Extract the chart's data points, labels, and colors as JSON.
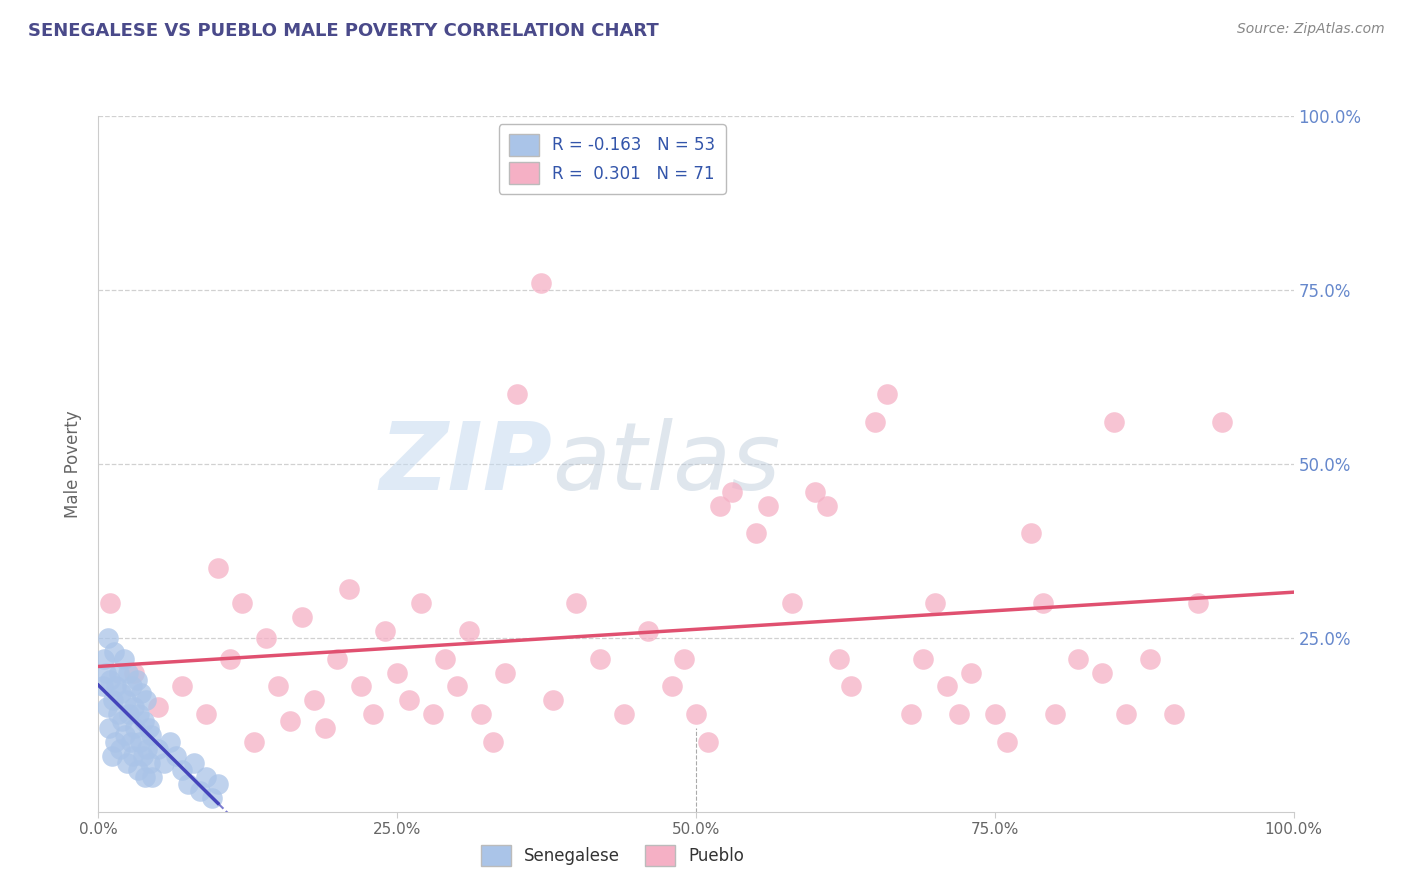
{
  "title": "SENEGALESE VS PUEBLO MALE POVERTY CORRELATION CHART",
  "source": "Source: ZipAtlas.com",
  "ylabel": "Male Poverty",
  "xlim": [
    0.0,
    1.0
  ],
  "ylim": [
    0.0,
    1.0
  ],
  "xtick_labels": [
    "0.0%",
    "25.0%",
    "50.0%",
    "75.0%",
    "100.0%"
  ],
  "xtick_vals": [
    0.0,
    0.25,
    0.5,
    0.75,
    1.0
  ],
  "ytick_labels": [
    "25.0%",
    "50.0%",
    "75.0%",
    "100.0%"
  ],
  "ytick_vals": [
    0.25,
    0.5,
    0.75,
    1.0
  ],
  "senegalese_color": "#aac4e8",
  "pueblo_color": "#f5b0c5",
  "senegalese_R": -0.163,
  "senegalese_N": 53,
  "pueblo_R": 0.301,
  "pueblo_N": 71,
  "background_color": "#ffffff",
  "grid_color": "#cccccc",
  "watermark_zip": "ZIP",
  "watermark_atlas": "atlas",
  "title_color": "#4a4a8a",
  "source_color": "#888888",
  "line_blue": "#4444bb",
  "line_pink": "#e05070",
  "senegalese_points": [
    [
      0.004,
      0.18
    ],
    [
      0.005,
      0.22
    ],
    [
      0.006,
      0.2
    ],
    [
      0.007,
      0.15
    ],
    [
      0.008,
      0.25
    ],
    [
      0.009,
      0.12
    ],
    [
      0.01,
      0.19
    ],
    [
      0.011,
      0.08
    ],
    [
      0.012,
      0.16
    ],
    [
      0.013,
      0.23
    ],
    [
      0.014,
      0.1
    ],
    [
      0.015,
      0.18
    ],
    [
      0.016,
      0.14
    ],
    [
      0.017,
      0.2
    ],
    [
      0.018,
      0.09
    ],
    [
      0.019,
      0.17
    ],
    [
      0.02,
      0.13
    ],
    [
      0.021,
      0.22
    ],
    [
      0.022,
      0.11
    ],
    [
      0.023,
      0.16
    ],
    [
      0.024,
      0.07
    ],
    [
      0.025,
      0.2
    ],
    [
      0.026,
      0.14
    ],
    [
      0.027,
      0.1
    ],
    [
      0.028,
      0.18
    ],
    [
      0.029,
      0.08
    ],
    [
      0.03,
      0.15
    ],
    [
      0.031,
      0.12
    ],
    [
      0.032,
      0.19
    ],
    [
      0.033,
      0.06
    ],
    [
      0.034,
      0.14
    ],
    [
      0.035,
      0.1
    ],
    [
      0.036,
      0.17
    ],
    [
      0.037,
      0.08
    ],
    [
      0.038,
      0.13
    ],
    [
      0.039,
      0.05
    ],
    [
      0.04,
      0.16
    ],
    [
      0.041,
      0.09
    ],
    [
      0.042,
      0.12
    ],
    [
      0.043,
      0.07
    ],
    [
      0.044,
      0.11
    ],
    [
      0.045,
      0.05
    ],
    [
      0.05,
      0.09
    ],
    [
      0.055,
      0.07
    ],
    [
      0.06,
      0.1
    ],
    [
      0.065,
      0.08
    ],
    [
      0.07,
      0.06
    ],
    [
      0.075,
      0.04
    ],
    [
      0.08,
      0.07
    ],
    [
      0.085,
      0.03
    ],
    [
      0.09,
      0.05
    ],
    [
      0.095,
      0.02
    ],
    [
      0.1,
      0.04
    ]
  ],
  "pueblo_points": [
    [
      0.01,
      0.3
    ],
    [
      0.03,
      0.2
    ],
    [
      0.05,
      0.15
    ],
    [
      0.07,
      0.18
    ],
    [
      0.09,
      0.14
    ],
    [
      0.1,
      0.35
    ],
    [
      0.11,
      0.22
    ],
    [
      0.12,
      0.3
    ],
    [
      0.13,
      0.1
    ],
    [
      0.14,
      0.25
    ],
    [
      0.15,
      0.18
    ],
    [
      0.16,
      0.13
    ],
    [
      0.17,
      0.28
    ],
    [
      0.18,
      0.16
    ],
    [
      0.19,
      0.12
    ],
    [
      0.2,
      0.22
    ],
    [
      0.21,
      0.32
    ],
    [
      0.22,
      0.18
    ],
    [
      0.23,
      0.14
    ],
    [
      0.24,
      0.26
    ],
    [
      0.25,
      0.2
    ],
    [
      0.26,
      0.16
    ],
    [
      0.27,
      0.3
    ],
    [
      0.28,
      0.14
    ],
    [
      0.29,
      0.22
    ],
    [
      0.3,
      0.18
    ],
    [
      0.31,
      0.26
    ],
    [
      0.32,
      0.14
    ],
    [
      0.33,
      0.1
    ],
    [
      0.34,
      0.2
    ],
    [
      0.35,
      0.6
    ],
    [
      0.37,
      0.76
    ],
    [
      0.38,
      0.16
    ],
    [
      0.4,
      0.3
    ],
    [
      0.42,
      0.22
    ],
    [
      0.44,
      0.14
    ],
    [
      0.46,
      0.26
    ],
    [
      0.48,
      0.18
    ],
    [
      0.49,
      0.22
    ],
    [
      0.5,
      0.14
    ],
    [
      0.51,
      0.1
    ],
    [
      0.52,
      0.44
    ],
    [
      0.53,
      0.46
    ],
    [
      0.55,
      0.4
    ],
    [
      0.56,
      0.44
    ],
    [
      0.58,
      0.3
    ],
    [
      0.6,
      0.46
    ],
    [
      0.61,
      0.44
    ],
    [
      0.62,
      0.22
    ],
    [
      0.63,
      0.18
    ],
    [
      0.65,
      0.56
    ],
    [
      0.66,
      0.6
    ],
    [
      0.68,
      0.14
    ],
    [
      0.69,
      0.22
    ],
    [
      0.7,
      0.3
    ],
    [
      0.71,
      0.18
    ],
    [
      0.72,
      0.14
    ],
    [
      0.73,
      0.2
    ],
    [
      0.75,
      0.14
    ],
    [
      0.76,
      0.1
    ],
    [
      0.78,
      0.4
    ],
    [
      0.79,
      0.3
    ],
    [
      0.8,
      0.14
    ],
    [
      0.82,
      0.22
    ],
    [
      0.84,
      0.2
    ],
    [
      0.85,
      0.56
    ],
    [
      0.86,
      0.14
    ],
    [
      0.88,
      0.22
    ],
    [
      0.9,
      0.14
    ],
    [
      0.92,
      0.3
    ],
    [
      0.94,
      0.56
    ]
  ]
}
